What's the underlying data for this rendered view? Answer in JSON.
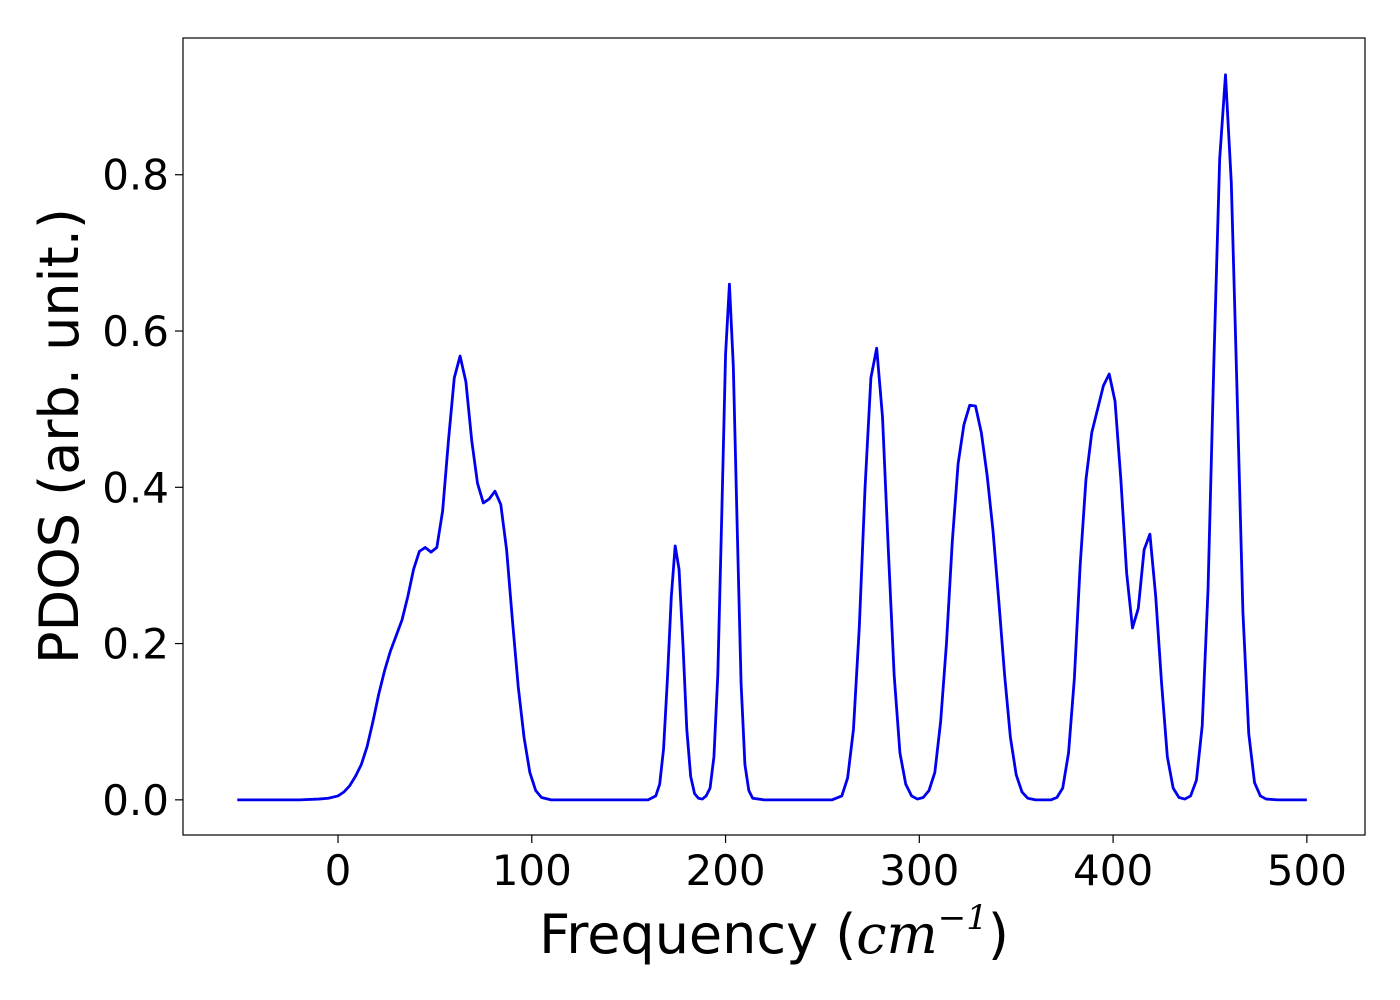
{
  "chart_data": {
    "type": "line",
    "title": "",
    "xlabel_prefix": "Frequency (",
    "xlabel_unit": "cm",
    "xlabel_exponent": "−1",
    "xlabel_suffix": ")",
    "ylabel": "PDOS (arb. unit.)",
    "xlim": [
      -80,
      530
    ],
    "ylim": [
      -0.045,
      0.975
    ],
    "xticks": [
      0,
      100,
      200,
      300,
      400,
      500
    ],
    "xtick_labels": [
      "0",
      "100",
      "200",
      "300",
      "400",
      "500"
    ],
    "yticks": [
      0.0,
      0.2,
      0.4,
      0.6,
      0.8
    ],
    "ytick_labels": [
      "0.0",
      "0.2",
      "0.4",
      "0.6",
      "0.8"
    ],
    "grid": false,
    "legend": "none",
    "series": [
      {
        "color": "#0000ee",
        "points": [
          [
            -52,
            0.0
          ],
          [
            -20,
            0.0
          ],
          [
            -10,
            0.001
          ],
          [
            -5,
            0.002
          ],
          [
            0,
            0.005
          ],
          [
            3,
            0.01
          ],
          [
            6,
            0.018
          ],
          [
            9,
            0.03
          ],
          [
            12,
            0.045
          ],
          [
            15,
            0.068
          ],
          [
            18,
            0.1
          ],
          [
            21,
            0.135
          ],
          [
            24,
            0.165
          ],
          [
            27,
            0.19
          ],
          [
            30,
            0.21
          ],
          [
            33,
            0.23
          ],
          [
            36,
            0.26
          ],
          [
            39,
            0.295
          ],
          [
            42,
            0.318
          ],
          [
            45,
            0.323
          ],
          [
            48,
            0.317
          ],
          [
            51,
            0.323
          ],
          [
            54,
            0.37
          ],
          [
            57,
            0.46
          ],
          [
            60,
            0.54
          ],
          [
            63,
            0.568
          ],
          [
            66,
            0.535
          ],
          [
            69,
            0.46
          ],
          [
            72,
            0.405
          ],
          [
            75,
            0.38
          ],
          [
            78,
            0.385
          ],
          [
            81,
            0.395
          ],
          [
            84,
            0.378
          ],
          [
            87,
            0.32
          ],
          [
            90,
            0.23
          ],
          [
            93,
            0.145
          ],
          [
            96,
            0.08
          ],
          [
            99,
            0.035
          ],
          [
            102,
            0.012
          ],
          [
            105,
            0.003
          ],
          [
            110,
            0.0
          ],
          [
            160,
            0.0
          ],
          [
            164,
            0.005
          ],
          [
            166,
            0.02
          ],
          [
            168,
            0.065
          ],
          [
            170,
            0.155
          ],
          [
            172,
            0.26
          ],
          [
            174,
            0.325
          ],
          [
            176,
            0.295
          ],
          [
            178,
            0.2
          ],
          [
            180,
            0.09
          ],
          [
            182,
            0.03
          ],
          [
            184,
            0.008
          ],
          [
            186,
            0.002
          ],
          [
            188,
            0.001
          ],
          [
            190,
            0.005
          ],
          [
            192,
            0.015
          ],
          [
            194,
            0.055
          ],
          [
            196,
            0.16
          ],
          [
            198,
            0.36
          ],
          [
            200,
            0.57
          ],
          [
            202,
            0.66
          ],
          [
            204,
            0.555
          ],
          [
            206,
            0.35
          ],
          [
            208,
            0.15
          ],
          [
            210,
            0.045
          ],
          [
            212,
            0.012
          ],
          [
            214,
            0.002
          ],
          [
            220,
            0.0
          ],
          [
            255,
            0.0
          ],
          [
            260,
            0.005
          ],
          [
            263,
            0.028
          ],
          [
            266,
            0.09
          ],
          [
            269,
            0.22
          ],
          [
            272,
            0.4
          ],
          [
            275,
            0.54
          ],
          [
            278,
            0.578
          ],
          [
            281,
            0.49
          ],
          [
            284,
            0.32
          ],
          [
            287,
            0.16
          ],
          [
            290,
            0.06
          ],
          [
            293,
            0.02
          ],
          [
            296,
            0.005
          ],
          [
            299,
            0.001
          ],
          [
            302,
            0.003
          ],
          [
            305,
            0.012
          ],
          [
            308,
            0.035
          ],
          [
            311,
            0.1
          ],
          [
            314,
            0.2
          ],
          [
            317,
            0.33
          ],
          [
            320,
            0.43
          ],
          [
            323,
            0.48
          ],
          [
            326,
            0.505
          ],
          [
            329,
            0.504
          ],
          [
            332,
            0.47
          ],
          [
            335,
            0.415
          ],
          [
            338,
            0.345
          ],
          [
            341,
            0.255
          ],
          [
            344,
            0.16
          ],
          [
            347,
            0.08
          ],
          [
            350,
            0.032
          ],
          [
            353,
            0.01
          ],
          [
            356,
            0.002
          ],
          [
            360,
            0.0
          ],
          [
            368,
            0.0
          ],
          [
            371,
            0.003
          ],
          [
            374,
            0.015
          ],
          [
            377,
            0.06
          ],
          [
            380,
            0.155
          ],
          [
            383,
            0.3
          ],
          [
            386,
            0.41
          ],
          [
            389,
            0.47
          ],
          [
            392,
            0.5
          ],
          [
            395,
            0.53
          ],
          [
            398,
            0.545
          ],
          [
            401,
            0.51
          ],
          [
            404,
            0.41
          ],
          [
            407,
            0.29
          ],
          [
            410,
            0.22
          ],
          [
            413,
            0.245
          ],
          [
            416,
            0.32
          ],
          [
            419,
            0.34
          ],
          [
            422,
            0.26
          ],
          [
            425,
            0.15
          ],
          [
            428,
            0.055
          ],
          [
            431,
            0.015
          ],
          [
            434,
            0.003
          ],
          [
            437,
            0.001
          ],
          [
            440,
            0.005
          ],
          [
            443,
            0.025
          ],
          [
            446,
            0.095
          ],
          [
            449,
            0.27
          ],
          [
            452,
            0.56
          ],
          [
            455,
            0.82
          ],
          [
            458,
            0.928
          ],
          [
            461,
            0.79
          ],
          [
            464,
            0.52
          ],
          [
            467,
            0.24
          ],
          [
            470,
            0.085
          ],
          [
            473,
            0.022
          ],
          [
            476,
            0.005
          ],
          [
            479,
            0.001
          ],
          [
            485,
            0.0
          ],
          [
            500,
            0.0
          ]
        ]
      }
    ]
  }
}
